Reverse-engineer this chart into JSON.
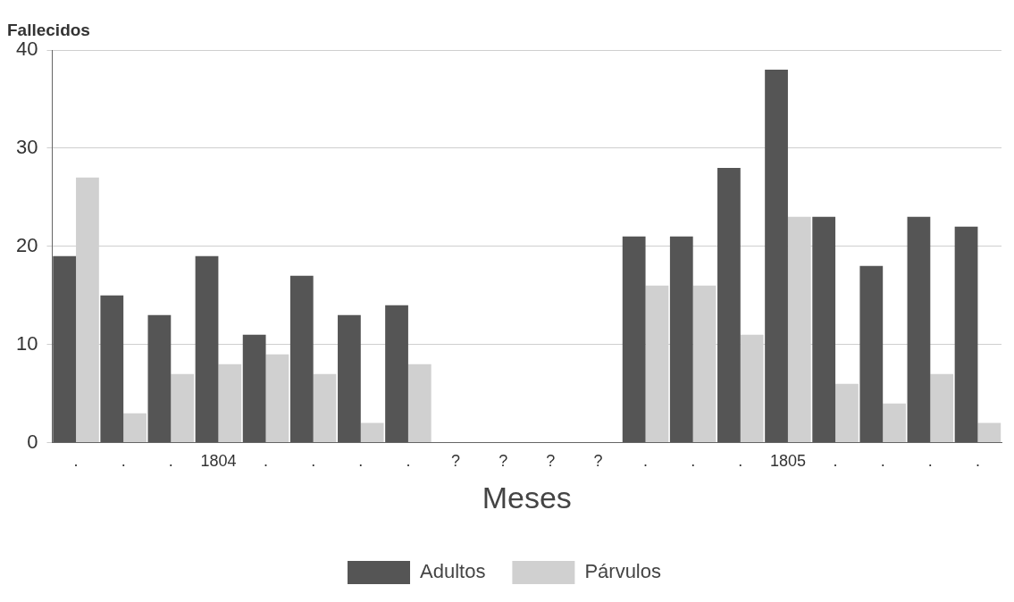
{
  "chart_data": {
    "type": "bar",
    "ylabel": "Fallecidos",
    "xlabel": "Meses",
    "categories": [
      ".",
      ".",
      ".",
      "1804",
      ".",
      ".",
      ".",
      ".",
      "?",
      "?",
      "?",
      "?",
      ".",
      ".",
      ".",
      "1805",
      ".",
      ".",
      ".",
      "."
    ],
    "series": [
      {
        "name": "Adultos",
        "color": "#555555",
        "values": [
          19,
          15,
          13,
          19,
          11,
          17,
          13,
          14,
          null,
          null,
          null,
          null,
          21,
          21,
          28,
          38,
          23,
          18,
          23,
          22
        ]
      },
      {
        "name": "Párvulos",
        "color": "#d0d0d0",
        "values": [
          27,
          3,
          7,
          8,
          9,
          7,
          2,
          8,
          null,
          null,
          null,
          null,
          16,
          16,
          11,
          23,
          6,
          4,
          7,
          2
        ]
      }
    ],
    "ylim": [
      0,
      40
    ],
    "yticks": [
      0,
      10,
      20,
      30,
      40
    ],
    "grid": "y",
    "legend": "bottom"
  }
}
